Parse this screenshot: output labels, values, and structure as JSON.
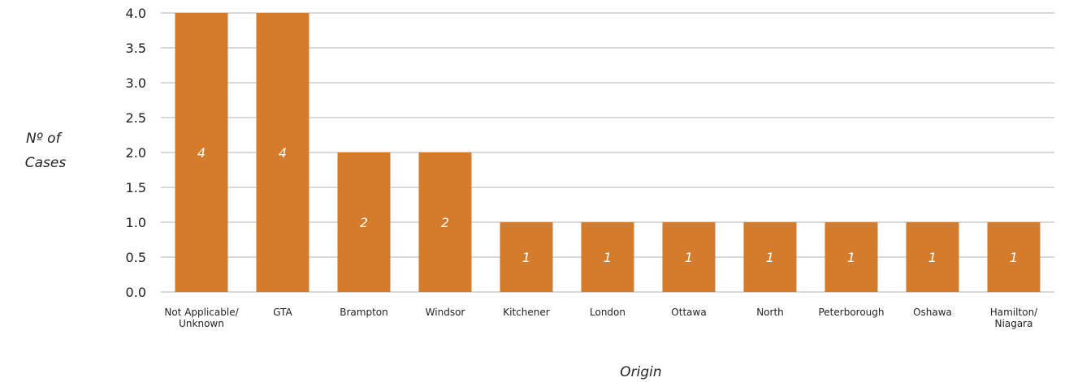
{
  "chart_data": {
    "type": "bar",
    "categories": [
      "Not Applicable/ Unknown",
      "GTA",
      "Brampton",
      "Windsor",
      "Kitchener",
      "London",
      "Ottawa",
      "North",
      "Peterborough",
      "Oshawa",
      "Hamilton/ Niagara"
    ],
    "category_lines": [
      [
        "Not Applicable/",
        "Unknown"
      ],
      [
        "GTA"
      ],
      [
        "Brampton"
      ],
      [
        "Windsor"
      ],
      [
        "Kitchener"
      ],
      [
        "London"
      ],
      [
        "Ottawa"
      ],
      [
        "North"
      ],
      [
        "Peterborough"
      ],
      [
        "Oshawa"
      ],
      [
        "Hamilton/",
        "Niagara"
      ]
    ],
    "values": [
      4,
      4,
      2,
      2,
      1,
      1,
      1,
      1,
      1,
      1,
      1
    ],
    "data_labels": [
      "4",
      "4",
      "2",
      "2",
      "1",
      "1",
      "1",
      "1",
      "1",
      "1",
      "1"
    ],
    "ylabel_lines": [
      "Nº of",
      "Cases"
    ],
    "xlabel": "Origin",
    "yticks": [
      "0.0",
      "0.5",
      "1.0",
      "1.5",
      "2.0",
      "2.5",
      "3.0",
      "3.5",
      "4.0"
    ],
    "ylim": [
      0,
      4
    ],
    "grid": true,
    "legend": "none",
    "bar_color": "#D57B2C",
    "grid_color": "#D9D9D9"
  }
}
